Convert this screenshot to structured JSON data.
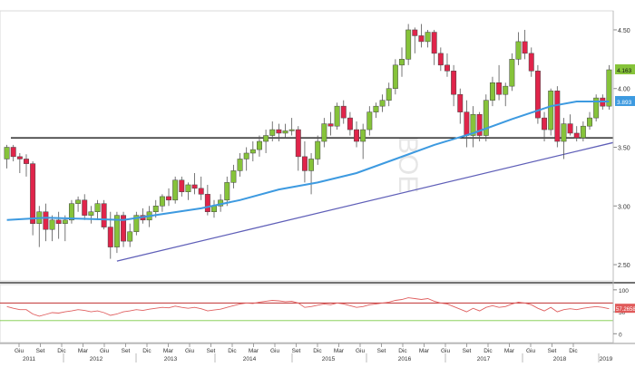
{
  "chart_data": [
    {
      "type": "candlestick",
      "ylim": [
        2.4,
        4.6
      ],
      "y_ticks": [
        "2.50",
        "3.00",
        "3.50",
        "4.00",
        "4.50"
      ],
      "x_ticks_month": [
        "Giu",
        "Set",
        "Dic",
        "Mar",
        "Giu",
        "Set",
        "Dic",
        "Mar",
        "Giu",
        "Set",
        "Dic",
        "Mar",
        "Giu",
        "Set",
        "Dic",
        "Mar",
        "Giu",
        "Set",
        "Dic",
        "Mar",
        "Giu",
        "Set",
        "Dic",
        "Mar",
        "Giu",
        "Set",
        "Dic"
      ],
      "x_ticks_year": [
        "2011",
        "2012",
        "2013",
        "2014",
        "2015",
        "2016",
        "2017",
        "2018",
        "2019"
      ],
      "watermark": "BOE",
      "last_price_label": "4.163",
      "ma_price_label": "3.893",
      "colors": {
        "up": "#86c33a",
        "down": "#e0244a",
        "ma": "#3d9ae0",
        "trend": "#5f5fb8",
        "level": "#000000",
        "rsi": "#e06060",
        "rsi_mid": "#c03030"
      },
      "horizontal_level": 3.58,
      "trendline": {
        "from": 2.53,
        "to": 3.54
      },
      "candles": [
        {
          "o": 3.4,
          "h": 3.52,
          "l": 3.32,
          "c": 3.5
        },
        {
          "o": 3.5,
          "h": 3.52,
          "l": 3.38,
          "c": 3.42
        },
        {
          "o": 3.42,
          "h": 3.45,
          "l": 3.28,
          "c": 3.4
        },
        {
          "o": 3.4,
          "h": 3.44,
          "l": 3.25,
          "c": 3.36
        },
        {
          "o": 3.36,
          "h": 3.38,
          "l": 2.75,
          "c": 2.85
        },
        {
          "o": 2.85,
          "h": 3.0,
          "l": 2.65,
          "c": 2.95
        },
        {
          "o": 2.95,
          "h": 3.02,
          "l": 2.7,
          "c": 2.8
        },
        {
          "o": 2.8,
          "h": 2.92,
          "l": 2.7,
          "c": 2.88
        },
        {
          "o": 2.88,
          "h": 2.95,
          "l": 2.72,
          "c": 2.85
        },
        {
          "o": 2.85,
          "h": 2.92,
          "l": 2.7,
          "c": 2.88
        },
        {
          "o": 2.88,
          "h": 3.05,
          "l": 2.85,
          "c": 3.02
        },
        {
          "o": 3.02,
          "h": 3.08,
          "l": 2.95,
          "c": 3.05
        },
        {
          "o": 3.05,
          "h": 3.1,
          "l": 2.88,
          "c": 2.92
        },
        {
          "o": 2.92,
          "h": 3.0,
          "l": 2.85,
          "c": 2.95
        },
        {
          "o": 2.95,
          "h": 3.05,
          "l": 2.88,
          "c": 3.02
        },
        {
          "o": 3.02,
          "h": 3.05,
          "l": 2.8,
          "c": 2.82
        },
        {
          "o": 2.82,
          "h": 2.95,
          "l": 2.55,
          "c": 2.65
        },
        {
          "o": 2.65,
          "h": 2.95,
          "l": 2.6,
          "c": 2.92
        },
        {
          "o": 2.92,
          "h": 2.95,
          "l": 2.65,
          "c": 2.7
        },
        {
          "o": 2.7,
          "h": 2.85,
          "l": 2.65,
          "c": 2.78
        },
        {
          "o": 2.78,
          "h": 2.95,
          "l": 2.75,
          "c": 2.92
        },
        {
          "o": 2.92,
          "h": 2.98,
          "l": 2.85,
          "c": 2.88
        },
        {
          "o": 2.88,
          "h": 3.0,
          "l": 2.82,
          "c": 2.95
        },
        {
          "o": 2.95,
          "h": 3.05,
          "l": 2.9,
          "c": 3.0
        },
        {
          "o": 3.0,
          "h": 3.1,
          "l": 2.95,
          "c": 3.08
        },
        {
          "o": 3.08,
          "h": 3.15,
          "l": 3.0,
          "c": 3.05
        },
        {
          "o": 3.05,
          "h": 3.25,
          "l": 3.02,
          "c": 3.22
        },
        {
          "o": 3.22,
          "h": 3.25,
          "l": 3.08,
          "c": 3.12
        },
        {
          "o": 3.12,
          "h": 3.2,
          "l": 3.05,
          "c": 3.18
        },
        {
          "o": 3.18,
          "h": 3.28,
          "l": 3.1,
          "c": 3.15
        },
        {
          "o": 3.15,
          "h": 3.25,
          "l": 3.05,
          "c": 3.1
        },
        {
          "o": 3.1,
          "h": 3.18,
          "l": 2.92,
          "c": 2.95
        },
        {
          "o": 2.95,
          "h": 3.05,
          "l": 2.9,
          "c": 3.0
        },
        {
          "o": 3.0,
          "h": 3.1,
          "l": 2.95,
          "c": 3.05
        },
        {
          "o": 3.05,
          "h": 3.25,
          "l": 3.0,
          "c": 3.2
        },
        {
          "o": 3.2,
          "h": 3.35,
          "l": 3.15,
          "c": 3.3
        },
        {
          "o": 3.3,
          "h": 3.45,
          "l": 3.25,
          "c": 3.4
        },
        {
          "o": 3.4,
          "h": 3.5,
          "l": 3.3,
          "c": 3.45
        },
        {
          "o": 3.45,
          "h": 3.55,
          "l": 3.38,
          "c": 3.48
        },
        {
          "o": 3.48,
          "h": 3.6,
          "l": 3.42,
          "c": 3.55
        },
        {
          "o": 3.55,
          "h": 3.65,
          "l": 3.45,
          "c": 3.6
        },
        {
          "o": 3.6,
          "h": 3.72,
          "l": 3.55,
          "c": 3.65
        },
        {
          "o": 3.65,
          "h": 3.7,
          "l": 3.55,
          "c": 3.62
        },
        {
          "o": 3.62,
          "h": 3.7,
          "l": 3.58,
          "c": 3.64
        },
        {
          "o": 3.64,
          "h": 3.75,
          "l": 3.6,
          "c": 3.65
        },
        {
          "o": 3.65,
          "h": 3.68,
          "l": 3.3,
          "c": 3.42
        },
        {
          "o": 3.42,
          "h": 3.55,
          "l": 3.2,
          "c": 3.3
        },
        {
          "o": 3.3,
          "h": 3.45,
          "l": 3.1,
          "c": 3.4
        },
        {
          "o": 3.4,
          "h": 3.6,
          "l": 3.35,
          "c": 3.55
        },
        {
          "o": 3.55,
          "h": 3.75,
          "l": 3.5,
          "c": 3.7
        },
        {
          "o": 3.7,
          "h": 3.8,
          "l": 3.6,
          "c": 3.68
        },
        {
          "o": 3.68,
          "h": 3.88,
          "l": 3.65,
          "c": 3.85
        },
        {
          "o": 3.85,
          "h": 3.9,
          "l": 3.7,
          "c": 3.75
        },
        {
          "o": 3.75,
          "h": 3.8,
          "l": 3.6,
          "c": 3.65
        },
        {
          "o": 3.65,
          "h": 3.72,
          "l": 3.5,
          "c": 3.55
        },
        {
          "o": 3.55,
          "h": 3.7,
          "l": 3.4,
          "c": 3.65
        },
        {
          "o": 3.65,
          "h": 3.85,
          "l": 3.6,
          "c": 3.8
        },
        {
          "o": 3.8,
          "h": 3.88,
          "l": 3.75,
          "c": 3.85
        },
        {
          "o": 3.85,
          "h": 3.95,
          "l": 3.8,
          "c": 3.9
        },
        {
          "o": 3.9,
          "h": 4.05,
          "l": 3.85,
          "c": 4.0
        },
        {
          "o": 4.0,
          "h": 4.25,
          "l": 3.95,
          "c": 4.2
        },
        {
          "o": 4.2,
          "h": 4.35,
          "l": 4.1,
          "c": 4.25
        },
        {
          "o": 4.25,
          "h": 4.55,
          "l": 4.2,
          "c": 4.5
        },
        {
          "o": 4.5,
          "h": 4.52,
          "l": 4.3,
          "c": 4.45
        },
        {
          "o": 4.45,
          "h": 4.55,
          "l": 4.35,
          "c": 4.4
        },
        {
          "o": 4.4,
          "h": 4.5,
          "l": 4.35,
          "c": 4.48
        },
        {
          "o": 4.48,
          "h": 4.5,
          "l": 4.2,
          "c": 4.3
        },
        {
          "o": 4.3,
          "h": 4.35,
          "l": 4.15,
          "c": 4.2
        },
        {
          "o": 4.2,
          "h": 4.3,
          "l": 4.1,
          "c": 4.15
        },
        {
          "o": 4.15,
          "h": 4.2,
          "l": 3.85,
          "c": 3.95
        },
        {
          "o": 3.95,
          "h": 4.0,
          "l": 3.7,
          "c": 3.8
        },
        {
          "o": 3.8,
          "h": 3.9,
          "l": 3.5,
          "c": 3.6
        },
        {
          "o": 3.6,
          "h": 3.85,
          "l": 3.5,
          "c": 3.78
        },
        {
          "o": 3.78,
          "h": 3.8,
          "l": 3.55,
          "c": 3.6
        },
        {
          "o": 3.6,
          "h": 3.95,
          "l": 3.55,
          "c": 3.9
        },
        {
          "o": 3.9,
          "h": 4.1,
          "l": 3.85,
          "c": 4.05
        },
        {
          "o": 4.05,
          "h": 4.2,
          "l": 3.9,
          "c": 3.95
        },
        {
          "o": 3.95,
          "h": 4.05,
          "l": 3.85,
          "c": 4.02
        },
        {
          "o": 4.02,
          "h": 4.3,
          "l": 3.98,
          "c": 4.25
        },
        {
          "o": 4.25,
          "h": 4.48,
          "l": 4.2,
          "c": 4.4
        },
        {
          "o": 4.4,
          "h": 4.5,
          "l": 4.25,
          "c": 4.3
        },
        {
          "o": 4.3,
          "h": 4.35,
          "l": 4.1,
          "c": 4.15
        },
        {
          "o": 4.15,
          "h": 4.2,
          "l": 3.7,
          "c": 3.75
        },
        {
          "o": 3.75,
          "h": 3.8,
          "l": 3.55,
          "c": 3.65
        },
        {
          "o": 3.65,
          "h": 4.0,
          "l": 3.6,
          "c": 3.98
        },
        {
          "o": 3.98,
          "h": 4.02,
          "l": 3.5,
          "c": 3.55
        },
        {
          "o": 3.55,
          "h": 3.75,
          "l": 3.4,
          "c": 3.7
        },
        {
          "o": 3.7,
          "h": 3.78,
          "l": 3.6,
          "c": 3.62
        },
        {
          "o": 3.62,
          "h": 3.68,
          "l": 3.55,
          "c": 3.58
        },
        {
          "o": 3.58,
          "h": 3.72,
          "l": 3.55,
          "c": 3.68
        },
        {
          "o": 3.68,
          "h": 3.8,
          "l": 3.65,
          "c": 3.75
        },
        {
          "o": 3.75,
          "h": 3.95,
          "l": 3.72,
          "c": 3.92
        },
        {
          "o": 3.92,
          "h": 3.95,
          "l": 3.82,
          "c": 3.85
        },
        {
          "o": 3.85,
          "h": 4.2,
          "l": 3.82,
          "c": 4.16
        }
      ],
      "moving_average": [
        {
          "i": 0,
          "v": 2.88
        },
        {
          "i": 6,
          "v": 2.9
        },
        {
          "i": 12,
          "v": 2.89
        },
        {
          "i": 18,
          "v": 2.88
        },
        {
          "i": 24,
          "v": 2.93
        },
        {
          "i": 30,
          "v": 2.98
        },
        {
          "i": 36,
          "v": 3.05
        },
        {
          "i": 42,
          "v": 3.14
        },
        {
          "i": 48,
          "v": 3.2
        },
        {
          "i": 54,
          "v": 3.28
        },
        {
          "i": 60,
          "v": 3.4
        },
        {
          "i": 66,
          "v": 3.52
        },
        {
          "i": 72,
          "v": 3.62
        },
        {
          "i": 78,
          "v": 3.74
        },
        {
          "i": 84,
          "v": 3.85
        },
        {
          "i": 88,
          "v": 3.89
        },
        {
          "i": 93,
          "v": 3.89
        }
      ]
    },
    {
      "type": "line",
      "ylim": [
        -20,
        110
      ],
      "y_ticks": [
        "100",
        "50",
        "0"
      ],
      "reference_lines": [
        70,
        30
      ],
      "last_value_label": "57.2658",
      "rsi": [
        62,
        58,
        55,
        55,
        45,
        40,
        44,
        48,
        47,
        50,
        52,
        55,
        53,
        50,
        52,
        48,
        42,
        45,
        50,
        52,
        55,
        53,
        56,
        58,
        60,
        59,
        63,
        60,
        58,
        60,
        57,
        52,
        54,
        56,
        60,
        64,
        68,
        70,
        69,
        72,
        74,
        76,
        75,
        73,
        74,
        70,
        60,
        62,
        65,
        68,
        66,
        70,
        68,
        64,
        60,
        62,
        66,
        68,
        70,
        72,
        76,
        78,
        82,
        80,
        78,
        80,
        74,
        70,
        68,
        62,
        56,
        50,
        58,
        52,
        60,
        64,
        60,
        62,
        68,
        72,
        70,
        66,
        58,
        52,
        60,
        50,
        55,
        57,
        55,
        58,
        60,
        62,
        60,
        57
      ]
    }
  ]
}
